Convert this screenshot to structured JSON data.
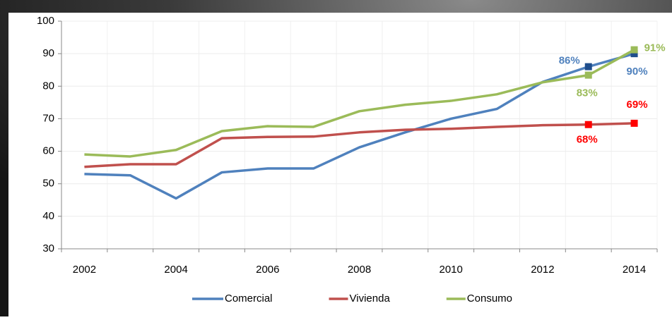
{
  "chart_data": {
    "type": "line",
    "categories": [
      "2002",
      null,
      "2004",
      null,
      "2006",
      null,
      "2008",
      null,
      "2010",
      null,
      "2012",
      null,
      "2014"
    ],
    "series": [
      {
        "name": "Comercial",
        "color": "#4f81bd",
        "marker_color": "#1f4e8c",
        "label_color": "#4f81bd",
        "values": [
          53,
          52.6,
          45.5,
          53.5,
          54.7,
          54.7,
          61.2,
          65.8,
          70,
          73,
          81.3,
          86,
          90
        ],
        "value_labels": [
          null,
          null,
          null,
          null,
          null,
          null,
          null,
          null,
          null,
          null,
          null,
          "86%",
          "90%"
        ]
      },
      {
        "name": "Vivienda",
        "color": "#c0504d",
        "marker_color": "#ff0000",
        "label_color": "#ff0000",
        "values": [
          55.2,
          56,
          56,
          64,
          64.4,
          64.5,
          65.8,
          66.6,
          66.9,
          67.5,
          68,
          68.2,
          68.6
        ],
        "value_labels": [
          null,
          null,
          null,
          null,
          null,
          null,
          null,
          null,
          null,
          null,
          null,
          "68%",
          "69%"
        ]
      },
      {
        "name": "Consumo",
        "color": "#9bbb59",
        "marker_color": "#9bbb59",
        "label_color": "#9bbb59",
        "values": [
          59,
          58.4,
          60.4,
          66.2,
          67.7,
          67.5,
          72.3,
          74.3,
          75.5,
          77.5,
          81.2,
          83.4,
          91.2
        ],
        "value_labels": [
          null,
          null,
          null,
          null,
          null,
          null,
          null,
          null,
          null,
          null,
          null,
          "83%",
          "91%"
        ]
      }
    ],
    "ylim": [
      30,
      100
    ],
    "yticks": [
      30,
      40,
      50,
      60,
      70,
      80,
      90,
      100
    ],
    "grid": true,
    "legend": "bottom"
  }
}
